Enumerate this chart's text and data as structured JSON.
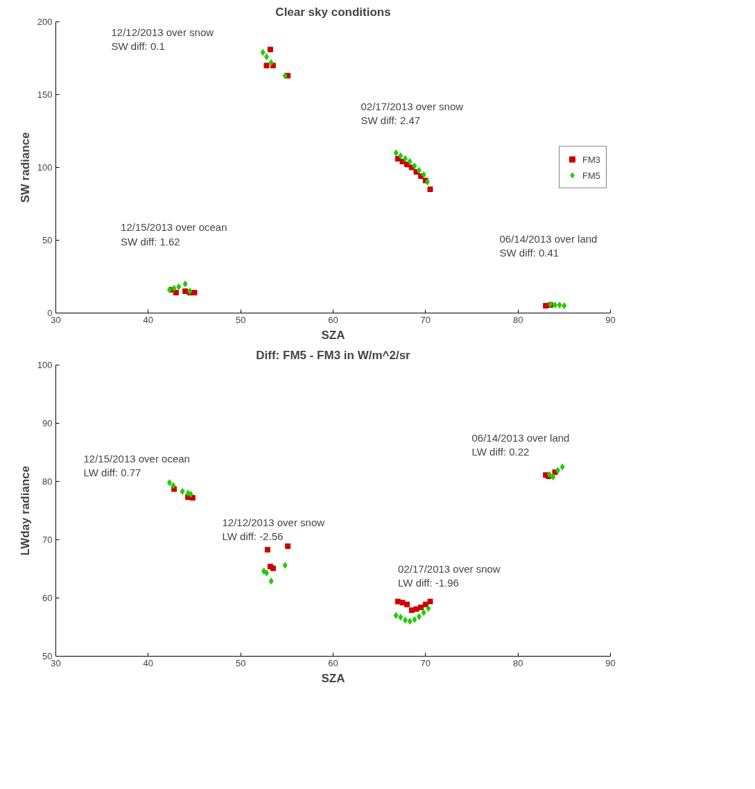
{
  "chart_data": [
    {
      "type": "scatter",
      "title": "Clear sky conditions",
      "xlabel": "SZA",
      "ylabel": "SW radiance",
      "xlim": [
        30,
        90
      ],
      "ylim": [
        0,
        200
      ],
      "xticks": [
        30,
        40,
        50,
        60,
        70,
        80,
        90
      ],
      "yticks": [
        0,
        50,
        100,
        150,
        200
      ],
      "legend": "right",
      "grid": false,
      "series": [
        {
          "name": "FM3",
          "color": "#cc0000",
          "marker": "square",
          "x": [
            53.2,
            52.8,
            53.5,
            55.1,
            67,
            67.5,
            68,
            68.5,
            69,
            69.5,
            70,
            70.5,
            42.5,
            43,
            44,
            44.5,
            45,
            83,
            83.5
          ],
          "values": [
            181,
            170,
            170,
            163,
            106,
            104,
            102,
            100,
            97,
            94,
            91,
            85,
            16,
            14,
            15,
            14,
            14,
            5,
            5.5
          ]
        },
        {
          "name": "FM5",
          "color": "#22cc00",
          "marker": "diamond",
          "x": [
            52.4,
            52.8,
            53.3,
            54.8,
            66.8,
            67.3,
            67.8,
            68.3,
            68.8,
            69.3,
            69.8,
            70.2,
            42.3,
            42.8,
            43.3,
            44,
            44.5,
            83.5,
            84,
            84.5,
            85
          ],
          "values": [
            179,
            176,
            172,
            163,
            110,
            108,
            106,
            104,
            101,
            98,
            95,
            90,
            16,
            17,
            18,
            20,
            15,
            6,
            5.5,
            5.5,
            5
          ]
        }
      ],
      "annotations": [
        "12/12/2013 over snow\nSW diff: 0.1",
        "02/17/2013 over snow\nSW diff: 2.47",
        "12/15/2013 over ocean\nSW diff: 1.62",
        "06/14/2013 over land\nSW diff: 0.41"
      ]
    },
    {
      "type": "scatter",
      "title": "Diff: FM5 - FM3 in W/m^2/sr",
      "xlabel": "SZA",
      "ylabel": "LWday radiance",
      "xlim": [
        30,
        90
      ],
      "ylim": [
        50,
        100
      ],
      "xticks": [
        30,
        40,
        50,
        60,
        70,
        80,
        90
      ],
      "yticks": [
        50,
        60,
        70,
        80,
        90,
        100
      ],
      "grid": false,
      "series": [
        {
          "color": "#cc0000",
          "marker": "square",
          "x": [
            42.8,
            44.3,
            44.8,
            52.9,
            53.2,
            53.5,
            55.1,
            67,
            67.5,
            68,
            68.5,
            69,
            69.5,
            70,
            70.5,
            83,
            83.3,
            84
          ],
          "values": [
            78.7,
            77.3,
            77.2,
            68.3,
            65.4,
            65.1,
            68.9,
            59.4,
            59.2,
            58.9,
            57.9,
            58.1,
            58.4,
            58.9,
            59.4,
            81.1,
            80.9,
            81.6
          ]
        },
        {
          "color": "#22cc00",
          "marker": "diamond",
          "x": [
            42.3,
            42.7,
            43.7,
            44.3,
            44.6,
            52.5,
            52.8,
            53.3,
            54.8,
            66.8,
            67.3,
            67.8,
            68.3,
            68.8,
            69.3,
            69.8,
            70.3,
            83.4,
            83.8,
            84.3,
            84.8
          ],
          "values": [
            79.8,
            79.3,
            78.3,
            78,
            77.8,
            64.6,
            64.3,
            62.9,
            65.6,
            57,
            56.7,
            56.2,
            56,
            56.3,
            56.8,
            57.5,
            58.2,
            81.2,
            80.8,
            81.9,
            82.5
          ]
        }
      ],
      "annotations": [
        "12/15/2013 over ocean\nLW diff: 0.77",
        "12/12/2013 over snow\nLW diff: -2.56",
        "02/17/2013 over snow\nLW diff: -1.96",
        "06/14/2013 over land\nLW diff: 0.22"
      ]
    }
  ]
}
